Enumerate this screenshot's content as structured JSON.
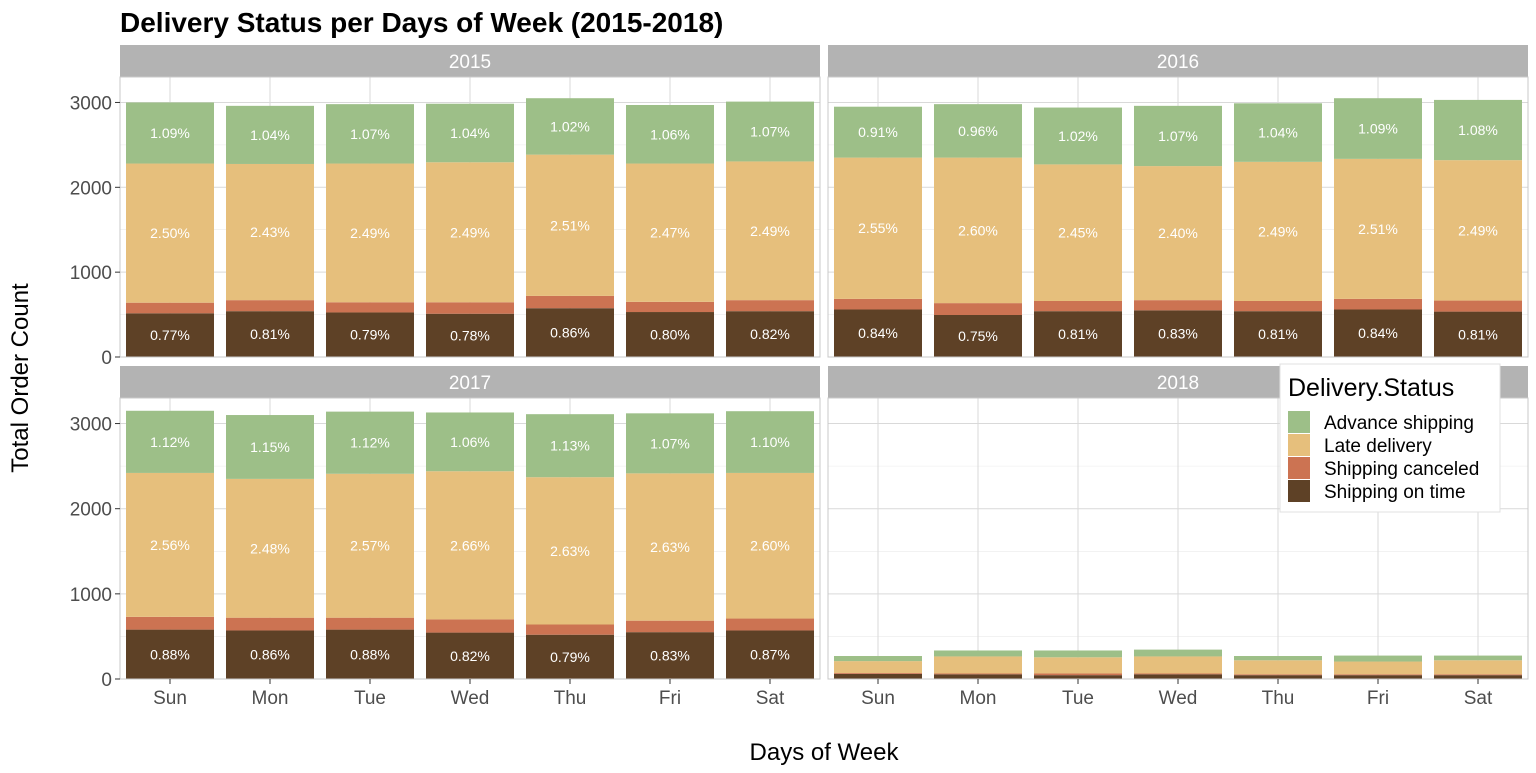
{
  "chart_data": {
    "type": "bar",
    "stacked": true,
    "title": "Delivery Status per Days of Week (2015-2018)",
    "xlabel": "Days of Week",
    "ylabel": "Total Order Count",
    "ylim": [
      0,
      3300
    ],
    "yticks": [
      0,
      1000,
      2000,
      3000
    ],
    "grid": true,
    "categories": [
      "Sun",
      "Mon",
      "Tue",
      "Wed",
      "Thu",
      "Fri",
      "Sat"
    ],
    "legend": {
      "title": "Delivery.Status",
      "position": "top-right",
      "entries": [
        "Advance shipping",
        "Late delivery",
        "Shipping canceled",
        "Shipping on time"
      ]
    },
    "colors": {
      "Advance shipping": "#9dbf88",
      "Late delivery": "#e6bf7c",
      "Shipping canceled": "#cc7352",
      "Shipping on time": "#5e4126"
    },
    "panels": [
      {
        "facet": "2015",
        "series": [
          {
            "name": "Shipping on time",
            "values": [
              515,
              540,
              525,
              510,
              575,
              530,
              540
            ],
            "labels": [
              "0.77%",
              "0.81%",
              "0.79%",
              "0.78%",
              "0.86%",
              "0.80%",
              "0.82%"
            ]
          },
          {
            "name": "Shipping canceled",
            "values": [
              125,
              130,
              120,
              135,
              145,
              120,
              130
            ],
            "labels": []
          },
          {
            "name": "Late delivery",
            "values": [
              1640,
              1605,
              1635,
              1650,
              1665,
              1630,
              1635
            ],
            "labels": [
              "2.50%",
              "2.43%",
              "2.49%",
              "2.49%",
              "2.51%",
              "2.47%",
              "2.49%"
            ]
          },
          {
            "name": "Advance shipping",
            "values": [
              720,
              685,
              700,
              690,
              665,
              690,
              705
            ],
            "labels": [
              "1.09%",
              "1.04%",
              "1.07%",
              "1.04%",
              "1.02%",
              "1.06%",
              "1.07%"
            ]
          }
        ]
      },
      {
        "facet": "2016",
        "series": [
          {
            "name": "Shipping on time",
            "values": [
              560,
              495,
              540,
              550,
              540,
              560,
              535
            ],
            "labels": [
              "0.84%",
              "0.75%",
              "0.81%",
              "0.83%",
              "0.81%",
              "0.84%",
              "0.81%"
            ]
          },
          {
            "name": "Shipping canceled",
            "values": [
              125,
              140,
              120,
              120,
              120,
              125,
              130
            ],
            "labels": []
          },
          {
            "name": "Late delivery",
            "values": [
              1665,
              1715,
              1610,
              1580,
              1640,
              1650,
              1655
            ],
            "labels": [
              "2.55%",
              "2.60%",
              "2.45%",
              "2.40%",
              "2.49%",
              "2.51%",
              "2.49%"
            ]
          },
          {
            "name": "Advance shipping",
            "values": [
              600,
              630,
              670,
              710,
              690,
              715,
              710
            ],
            "labels": [
              "0.91%",
              "0.96%",
              "1.02%",
              "1.07%",
              "1.04%",
              "1.09%",
              "1.08%"
            ]
          }
        ]
      },
      {
        "facet": "2017",
        "series": [
          {
            "name": "Shipping on time",
            "values": [
              580,
              570,
              580,
              545,
              520,
              550,
              570
            ],
            "labels": [
              "0.88%",
              "0.86%",
              "0.88%",
              "0.82%",
              "0.79%",
              "0.83%",
              "0.87%"
            ]
          },
          {
            "name": "Shipping canceled",
            "values": [
              150,
              150,
              140,
              155,
              120,
              135,
              140
            ],
            "labels": []
          },
          {
            "name": "Late delivery",
            "values": [
              1690,
              1630,
              1690,
              1740,
              1730,
              1730,
              1710
            ],
            "labels": [
              "2.56%",
              "2.48%",
              "2.57%",
              "2.66%",
              "2.63%",
              "2.63%",
              "2.60%"
            ]
          },
          {
            "name": "Advance shipping",
            "values": [
              730,
              750,
              730,
              690,
              740,
              705,
              725
            ],
            "labels": [
              "1.12%",
              "1.15%",
              "1.12%",
              "1.06%",
              "1.13%",
              "1.07%",
              "1.10%"
            ]
          }
        ]
      },
      {
        "facet": "2018",
        "series": [
          {
            "name": "Shipping on time",
            "values": [
              60,
              55,
              45,
              55,
              45,
              45,
              45
            ],
            "labels": []
          },
          {
            "name": "Shipping canceled",
            "values": [
              10,
              10,
              20,
              10,
              10,
              10,
              10
            ],
            "labels": []
          },
          {
            "name": "Late delivery",
            "values": [
              140,
              200,
              190,
              200,
              165,
              150,
              165
            ],
            "labels": []
          },
          {
            "name": "Advance shipping",
            "values": [
              60,
              70,
              80,
              80,
              50,
              70,
              55
            ],
            "labels": []
          }
        ]
      }
    ]
  }
}
